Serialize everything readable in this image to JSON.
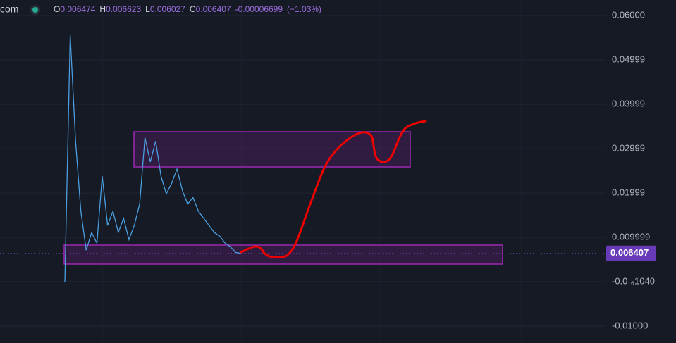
{
  "header": {
    "site": "com",
    "open": {
      "label": "O",
      "value": "0.006474"
    },
    "high": {
      "label": "H",
      "value": "0.006623"
    },
    "low": {
      "label": "L",
      "value": "0.006027"
    },
    "close": {
      "label": "C",
      "value": "0.006407"
    },
    "change": "-0.00006699",
    "change_pct": "(−1.03%)"
  },
  "chart_data": {
    "type": "line",
    "color": "#4a9fe0",
    "categories": [
      null,
      null,
      null,
      null,
      null,
      null,
      null,
      null,
      null,
      null,
      null,
      null,
      null,
      null,
      null,
      null,
      null,
      null,
      null,
      null,
      null,
      null,
      null,
      null,
      null,
      null,
      null,
      null,
      null,
      null,
      null,
      null,
      null,
      null
    ],
    "values": [
      0,
      0.0556,
      0.0317,
      0.0159,
      0.0071,
      0.0111,
      0.0087,
      0.0238,
      0.0127,
      0.0159,
      0.0111,
      0.0143,
      0.0095,
      0.0127,
      0.0175,
      0.0325,
      0.027,
      0.0317,
      0.0238,
      0.0198,
      0.0222,
      0.0254,
      0.0206,
      0.0175,
      0.019,
      0.0159,
      0.0143,
      0.0127,
      0.0111,
      0.0103,
      0.0087,
      0.0079,
      0.0066,
      0.0064
    ],
    "ylim": [
      -0.0138,
      0.0635
    ],
    "yticks": [
      {
        "value": 0.06,
        "label": "0.06000"
      },
      {
        "value": 0.04999,
        "label": "0.04999"
      },
      {
        "value": 0.03999,
        "label": "0.03999"
      },
      {
        "value": 0.02999,
        "label": "0.02999"
      },
      {
        "value": 0.01999,
        "label": "0.01999"
      },
      {
        "value": 0.009999,
        "label": "0.009999"
      },
      {
        "value": -1.04e-17,
        "label": "-0.0₁₆1040"
      },
      {
        "value": -0.01,
        "label": "-0.01000"
      }
    ],
    "last_price": {
      "value": 0.006407,
      "label": "0.006407"
    },
    "grid": true
  }
}
